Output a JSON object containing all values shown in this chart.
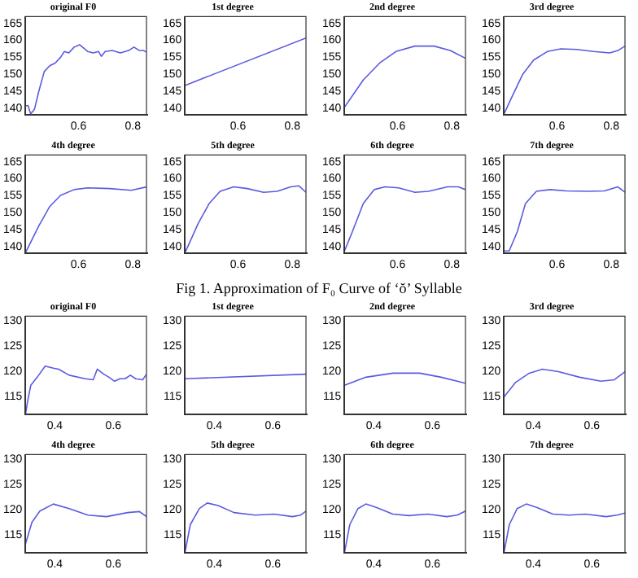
{
  "chart_data": [
    {
      "type": "line",
      "title": "original F0",
      "xlim": [
        0.405,
        0.85
      ],
      "ylim": [
        138,
        167
      ],
      "xticks": [
        0.6,
        0.8
      ],
      "yticks": [
        140,
        145,
        150,
        155,
        160,
        165
      ],
      "x": [
        0.405,
        0.414,
        0.424,
        0.438,
        0.454,
        0.474,
        0.494,
        0.514,
        0.534,
        0.548,
        0.564,
        0.584,
        0.604,
        0.622,
        0.634,
        0.654,
        0.674,
        0.684,
        0.698,
        0.724,
        0.754,
        0.784,
        0.804,
        0.824,
        0.84,
        0.85
      ],
      "series": [
        {
          "color": "#5a5ae0",
          "values": [
            140.7,
            140.8,
            138.3,
            139.7,
            145,
            150.8,
            152.5,
            153.3,
            155,
            156.7,
            156.3,
            158,
            158.7,
            157.5,
            156.7,
            156.3,
            156.7,
            155.3,
            156.7,
            157,
            156.3,
            157,
            158,
            157,
            157,
            156.5
          ]
        }
      ]
    },
    {
      "type": "line",
      "title": "1st degree",
      "xlim": [
        0.405,
        0.85
      ],
      "ylim": [
        138,
        167
      ],
      "xticks": [
        0.6,
        0.8
      ],
      "yticks": [
        140,
        145,
        150,
        155,
        160,
        165
      ],
      "x": [
        0.405,
        0.85
      ],
      "series": [
        {
          "color": "#5a5ae0",
          "values": [
            146.7,
            160.7
          ]
        }
      ]
    },
    {
      "type": "line",
      "title": "2nd degree",
      "xlim": [
        0.405,
        0.85
      ],
      "ylim": [
        138,
        167
      ],
      "xticks": [
        0.6,
        0.8
      ],
      "yticks": [
        140,
        145,
        150,
        155,
        160,
        165
      ],
      "x": [
        0.405,
        0.474,
        0.534,
        0.594,
        0.664,
        0.734,
        0.794,
        0.85
      ],
      "series": [
        {
          "color": "#5a5ae0",
          "values": [
            140.3,
            148.3,
            153.3,
            156.7,
            158.3,
            158.3,
            157,
            154.7
          ]
        }
      ]
    },
    {
      "type": "line",
      "title": "3rd degree",
      "xlim": [
        0.405,
        0.85
      ],
      "ylim": [
        138,
        167
      ],
      "xticks": [
        0.6,
        0.8
      ],
      "yticks": [
        140,
        145,
        150,
        155,
        160,
        165
      ],
      "x": [
        0.405,
        0.434,
        0.474,
        0.514,
        0.564,
        0.614,
        0.674,
        0.734,
        0.794,
        0.824,
        0.85
      ],
      "series": [
        {
          "color": "#5a5ae0",
          "values": [
            138.3,
            143.3,
            150,
            154.2,
            156.7,
            157.5,
            157.3,
            156.7,
            156.3,
            157,
            158.3
          ]
        }
      ]
    },
    {
      "type": "line",
      "title": "4th degree",
      "xlim": [
        0.405,
        0.85
      ],
      "ylim": [
        138,
        167
      ],
      "xticks": [
        0.6,
        0.8
      ],
      "yticks": [
        140,
        145,
        150,
        155,
        160,
        165
      ],
      "x": [
        0.405,
        0.454,
        0.494,
        0.534,
        0.584,
        0.634,
        0.714,
        0.794,
        0.85
      ],
      "series": [
        {
          "color": "#5a5ae0",
          "values": [
            138.2,
            146.1,
            151.8,
            155.1,
            156.8,
            157.3,
            157.1,
            156.6,
            157.6
          ]
        }
      ]
    },
    {
      "type": "line",
      "title": "5th degree",
      "xlim": [
        0.405,
        0.85
      ],
      "ylim": [
        138,
        167
      ],
      "xticks": [
        0.6,
        0.8
      ],
      "yticks": [
        140,
        145,
        150,
        155,
        160,
        165
      ],
      "x": [
        0.405,
        0.454,
        0.494,
        0.534,
        0.584,
        0.634,
        0.694,
        0.744,
        0.794,
        0.824,
        0.85
      ],
      "series": [
        {
          "color": "#5a5ae0",
          "values": [
            138.2,
            146.9,
            152.7,
            156.3,
            157.6,
            157.1,
            156,
            156.3,
            157.6,
            157.9,
            156
          ]
        }
      ]
    },
    {
      "type": "line",
      "title": "6th degree",
      "xlim": [
        0.405,
        0.85
      ],
      "ylim": [
        138,
        167
      ],
      "xticks": [
        0.6,
        0.8
      ],
      "yticks": [
        140,
        145,
        150,
        155,
        160,
        165
      ],
      "x": [
        0.405,
        0.434,
        0.474,
        0.514,
        0.554,
        0.604,
        0.664,
        0.714,
        0.784,
        0.824,
        0.85
      ],
      "series": [
        {
          "color": "#5a5ae0",
          "values": [
            138.7,
            144.4,
            152.7,
            156.8,
            157.6,
            157.3,
            156,
            156.3,
            157.6,
            157.6,
            156.8
          ]
        }
      ]
    },
    {
      "type": "line",
      "title": "7th degree",
      "xlim": [
        0.405,
        0.85
      ],
      "ylim": [
        138,
        167
      ],
      "xticks": [
        0.6,
        0.8
      ],
      "yticks": [
        140,
        145,
        150,
        155,
        160,
        165
      ],
      "x": [
        0.405,
        0.424,
        0.454,
        0.484,
        0.524,
        0.574,
        0.634,
        0.714,
        0.774,
        0.824,
        0.85
      ],
      "series": [
        {
          "color": "#5a5ae0",
          "values": [
            138.7,
            138.7,
            144.4,
            152.7,
            156.3,
            156.8,
            156.4,
            156.3,
            156.4,
            157.6,
            156
          ]
        }
      ]
    },
    {
      "type": "other",
      "title": "Fig 1. Approximation of F₀ Curve of ‘ŏ’ Syllable"
    },
    {
      "type": "line",
      "title": "original F0",
      "xlim": [
        0.3,
        0.713
      ],
      "ylim": [
        111.5,
        131
      ],
      "xticks": [
        0.4,
        0.6
      ],
      "yticks": [
        115,
        120,
        125,
        130
      ],
      "x": [
        0.3,
        0.307,
        0.318,
        0.34,
        0.367,
        0.395,
        0.413,
        0.449,
        0.504,
        0.531,
        0.545,
        0.567,
        0.585,
        0.604,
        0.622,
        0.64,
        0.658,
        0.676,
        0.7,
        0.713
      ],
      "series": [
        {
          "color": "#5a5ae0",
          "values": [
            111.5,
            114.1,
            117.3,
            118.9,
            121.1,
            120.7,
            120.5,
            119.3,
            118.6,
            118.4,
            120.5,
            119.5,
            118.9,
            118.1,
            118.6,
            118.6,
            119.3,
            118.6,
            118.4,
            119.5
          ]
        }
      ]
    },
    {
      "type": "line",
      "title": "1st degree",
      "xlim": [
        0.3,
        0.713
      ],
      "ylim": [
        111.5,
        131
      ],
      "xticks": [
        0.4,
        0.6
      ],
      "yticks": [
        115,
        120,
        125,
        130
      ],
      "x": [
        0.3,
        0.713
      ],
      "series": [
        {
          "color": "#5a5ae0",
          "values": [
            118.6,
            119.5
          ]
        }
      ]
    },
    {
      "type": "line",
      "title": "2nd degree",
      "xlim": [
        0.3,
        0.713
      ],
      "ylim": [
        111.5,
        131
      ],
      "xticks": [
        0.4,
        0.6
      ],
      "yticks": [
        115,
        120,
        125,
        130
      ],
      "x": [
        0.3,
        0.373,
        0.465,
        0.557,
        0.63,
        0.713
      ],
      "series": [
        {
          "color": "#5a5ae0",
          "values": [
            117.3,
            118.9,
            119.7,
            119.7,
            118.9,
            117.7
          ]
        }
      ]
    },
    {
      "type": "line",
      "title": "3rd degree",
      "xlim": [
        0.3,
        0.713
      ],
      "ylim": [
        111.5,
        131
      ],
      "xticks": [
        0.4,
        0.6
      ],
      "yticks": [
        115,
        120,
        125,
        130
      ],
      "x": [
        0.3,
        0.34,
        0.386,
        0.431,
        0.486,
        0.558,
        0.631,
        0.677,
        0.713
      ],
      "series": [
        {
          "color": "#5a5ae0",
          "values": [
            115,
            117.9,
            119.7,
            120.5,
            120,
            118.9,
            118.1,
            118.4,
            120
          ]
        }
      ]
    },
    {
      "type": "line",
      "title": "4th degree",
      "xlim": [
        0.3,
        0.713
      ],
      "ylim": [
        111.5,
        131
      ],
      "xticks": [
        0.4,
        0.6
      ],
      "yticks": [
        115,
        120,
        125,
        130
      ],
      "x": [
        0.3,
        0.322,
        0.349,
        0.395,
        0.449,
        0.513,
        0.576,
        0.649,
        0.689,
        0.713
      ],
      "series": [
        {
          "color": "#5a5ae0",
          "values": [
            113.3,
            117.6,
            119.8,
            121.2,
            120.3,
            119,
            118.7,
            119.5,
            119.7,
            118.7
          ]
        }
      ]
    },
    {
      "type": "line",
      "title": "5th degree",
      "xlim": [
        0.3,
        0.713
      ],
      "ylim": [
        111.5,
        131
      ],
      "xticks": [
        0.4,
        0.6
      ],
      "yticks": [
        115,
        120,
        125,
        130
      ],
      "x": [
        0.3,
        0.318,
        0.349,
        0.376,
        0.413,
        0.467,
        0.54,
        0.604,
        0.667,
        0.695,
        0.713
      ],
      "series": [
        {
          "color": "#5a5ae0",
          "values": [
            111.6,
            117.1,
            120.3,
            121.4,
            120.9,
            119.5,
            119,
            119.2,
            118.7,
            119,
            119.8
          ]
        }
      ]
    },
    {
      "type": "line",
      "title": "6th degree",
      "xlim": [
        0.3,
        0.713
      ],
      "ylim": [
        111.5,
        131
      ],
      "xticks": [
        0.4,
        0.6
      ],
      "yticks": [
        115,
        120,
        125,
        130
      ],
      "x": [
        0.3,
        0.318,
        0.346,
        0.373,
        0.41,
        0.465,
        0.52,
        0.585,
        0.649,
        0.685,
        0.713
      ],
      "series": [
        {
          "color": "#5a5ae0",
          "values": [
            111.6,
            117.1,
            120.3,
            121.2,
            120.5,
            119.2,
            118.9,
            119.2,
            118.7,
            119,
            119.8
          ]
        }
      ]
    },
    {
      "type": "line",
      "title": "7th degree",
      "xlim": [
        0.3,
        0.713
      ],
      "ylim": [
        111.5,
        131
      ],
      "xticks": [
        0.4,
        0.6
      ],
      "yticks": [
        115,
        120,
        125,
        130
      ],
      "x": [
        0.3,
        0.318,
        0.345,
        0.376,
        0.413,
        0.467,
        0.522,
        0.577,
        0.649,
        0.686,
        0.713
      ],
      "series": [
        {
          "color": "#5a5ae0",
          "values": [
            111.6,
            117.1,
            120.3,
            121.2,
            120.5,
            119.2,
            119,
            119.2,
            118.7,
            119,
            119.4
          ]
        }
      ]
    }
  ]
}
